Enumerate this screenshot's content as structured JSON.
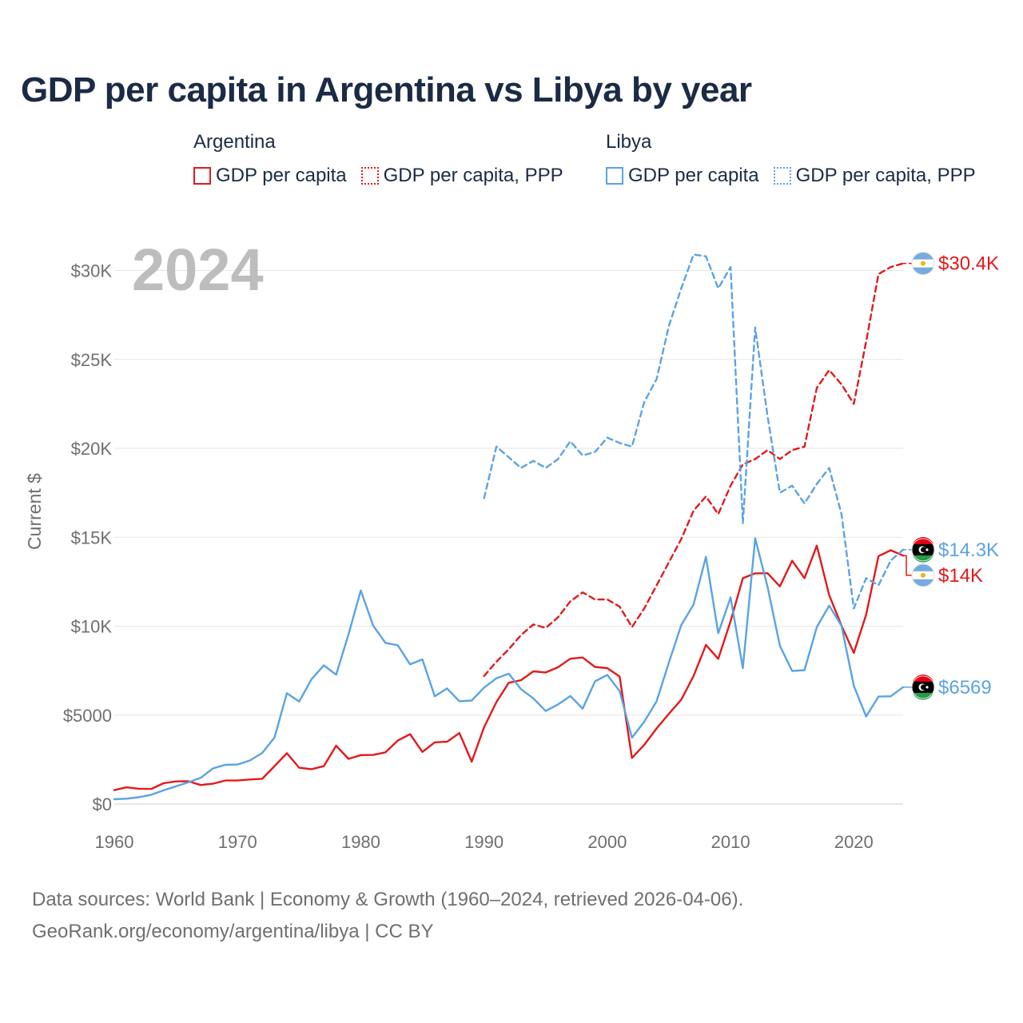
{
  "title": "GDP per capita in Argentina vs Libya by year",
  "year_stamp": "2024",
  "legend": {
    "groups": [
      {
        "country": "Argentina",
        "items": [
          {
            "label": "GDP per capita",
            "style": "solid",
            "color": "#e3191c"
          },
          {
            "label": "GDP per capita, PPP",
            "style": "dotted",
            "color": "#e3191c"
          }
        ]
      },
      {
        "country": "Libya",
        "items": [
          {
            "label": "GDP per capita",
            "style": "solid",
            "color": "#5aa3e4"
          },
          {
            "label": "GDP per capita, PPP",
            "style": "dotted",
            "color": "#5aa3e4"
          }
        ]
      }
    ]
  },
  "source": {
    "line1": "Data sources: World Bank | Economy & Growth (1960–2024, retrieved 2026-04-06).",
    "line2": "GeoRank.org/economy/argentina/libya | CC BY"
  },
  "chart_data": {
    "type": "line",
    "title": "GDP per capita in Argentina vs Libya by year",
    "ylabel": "Current $",
    "xlabel": "",
    "xlim": [
      1960,
      2024
    ],
    "ylim": [
      0,
      32000
    ],
    "x_ticks": [
      {
        "value": 1960,
        "label": "1960"
      },
      {
        "value": 1970,
        "label": "1970"
      },
      {
        "value": 1980,
        "label": "1980"
      },
      {
        "value": 1990,
        "label": "1990"
      },
      {
        "value": 2000,
        "label": "2000"
      },
      {
        "value": 2010,
        "label": "2010"
      },
      {
        "value": 2020,
        "label": "2020"
      }
    ],
    "y_ticks": [
      {
        "value": 0,
        "label": "$0"
      },
      {
        "value": 5000,
        "label": "$5000"
      },
      {
        "value": 10000,
        "label": "$10K"
      },
      {
        "value": 15000,
        "label": "$15K"
      },
      {
        "value": 20000,
        "label": "$20K"
      },
      {
        "value": 25000,
        "label": "$25K"
      },
      {
        "value": 30000,
        "label": "$30K"
      }
    ],
    "grid": true,
    "series": [
      {
        "name": "Argentina GDP per capita",
        "country": "Argentina",
        "color": "#e3191c",
        "dash": "solid",
        "x_start": 1960,
        "values": [
          780,
          940,
          860,
          850,
          1170,
          1270,
          1280,
          1070,
          1140,
          1320,
          1320,
          1380,
          1420,
          2130,
          2860,
          2040,
          1960,
          2130,
          3280,
          2540,
          2750,
          2760,
          2910,
          3570,
          3930,
          2930,
          3470,
          3500,
          3990,
          2380,
          4320,
          5730,
          6820,
          6960,
          7460,
          7400,
          7690,
          8170,
          8240,
          7710,
          7640,
          7170,
          2590,
          3330,
          4250,
          5080,
          5870,
          7200,
          8950,
          8160,
          10280,
          12700,
          12970,
          12980,
          12240,
          13680,
          12700,
          14530,
          11750,
          10030,
          8500,
          10640,
          13940,
          14270,
          13970
        ],
        "end_label": "$14K"
      },
      {
        "name": "Argentina GDP per capita, PPP",
        "country": "Argentina",
        "color": "#e3191c",
        "dash": "dashed",
        "x_start": 1990,
        "values": [
          7200,
          8000,
          8700,
          9500,
          10100,
          9900,
          10500,
          11400,
          11900,
          11500,
          11500,
          11100,
          9950,
          11000,
          12300,
          13600,
          14900,
          16500,
          17300,
          16300,
          17900,
          19100,
          19400,
          19900,
          19400,
          19900,
          20100,
          23400,
          24400,
          23600,
          22500,
          26000,
          29800,
          30200,
          30400
        ],
        "end_label": "$30.4K"
      },
      {
        "name": "Libya GDP per capita",
        "country": "Libya",
        "color": "#5aa3e4",
        "dash": "solid",
        "x_start": 1960,
        "values": [
          270,
          300,
          380,
          520,
          770,
          1000,
          1220,
          1470,
          2000,
          2200,
          2220,
          2450,
          2870,
          3740,
          6230,
          5760,
          7020,
          7800,
          7270,
          9530,
          12010,
          10030,
          9060,
          8930,
          7850,
          8130,
          6060,
          6500,
          5780,
          5820,
          6550,
          7070,
          7330,
          6460,
          5940,
          5230,
          5600,
          6070,
          5360,
          6900,
          7260,
          6350,
          3730,
          4630,
          5780,
          7970,
          10060,
          11220,
          13900,
          9610,
          11620,
          7640,
          14940,
          12210,
          8900,
          7480,
          7530,
          9950,
          11160,
          10020,
          6650,
          4920,
          6040,
          6060,
          6569
        ],
        "end_label": "$6569"
      },
      {
        "name": "Libya GDP per capita, PPP",
        "country": "Libya",
        "color": "#5aa3e4",
        "dash": "dashed",
        "x_start": 1990,
        "values": [
          17200,
          20100,
          19500,
          18900,
          19300,
          18900,
          19400,
          20400,
          19600,
          19800,
          20600,
          20300,
          20100,
          22600,
          23900,
          26900,
          29000,
          30900,
          30800,
          29000,
          30200,
          15800,
          26800,
          21800,
          17500,
          17900,
          16900,
          18000,
          18900,
          16300,
          11000,
          12700,
          12300,
          13700,
          14300
        ],
        "end_label": "$14.3K"
      }
    ]
  }
}
